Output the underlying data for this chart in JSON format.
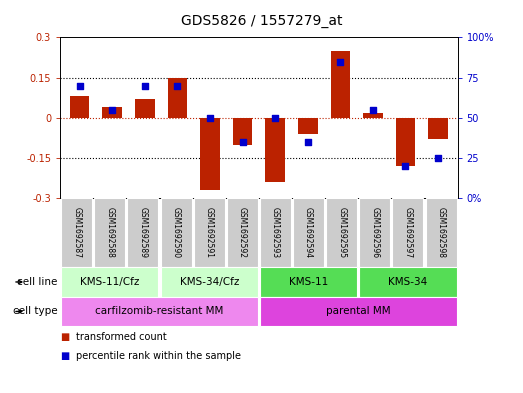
{
  "title": "GDS5826 / 1557279_at",
  "samples": [
    "GSM1692587",
    "GSM1692588",
    "GSM1692589",
    "GSM1692590",
    "GSM1692591",
    "GSM1692592",
    "GSM1692593",
    "GSM1692594",
    "GSM1692595",
    "GSM1692596",
    "GSM1692597",
    "GSM1692598"
  ],
  "transformed_count": [
    0.08,
    0.04,
    0.07,
    0.15,
    -0.27,
    -0.1,
    -0.24,
    -0.06,
    0.25,
    0.02,
    -0.18,
    -0.08
  ],
  "percentile_rank": [
    70,
    55,
    70,
    70,
    50,
    35,
    50,
    35,
    85,
    55,
    20,
    25
  ],
  "bar_color": "#bb2200",
  "dot_color": "#0000cc",
  "ylim": [
    -0.3,
    0.3
  ],
  "y2lim": [
    0,
    100
  ],
  "yticks": [
    -0.3,
    -0.15,
    0.0,
    0.15,
    0.3
  ],
  "y2ticks": [
    0,
    25,
    50,
    75,
    100
  ],
  "ytick_labels": [
    "-0.3",
    "-0.15",
    "0",
    "0.15",
    "0.3"
  ],
  "y2tick_labels": [
    "0%",
    "25",
    "50",
    "75",
    "100%"
  ],
  "hlines_black": [
    -0.15,
    0.15
  ],
  "hline_red": 0.0,
  "cell_line_groups": [
    {
      "label": "KMS-11/Cfz",
      "start": 0,
      "end": 2,
      "color": "#ccffcc"
    },
    {
      "label": "KMS-34/Cfz",
      "start": 3,
      "end": 5,
      "color": "#ccffcc"
    },
    {
      "label": "KMS-11",
      "start": 6,
      "end": 8,
      "color": "#55dd55"
    },
    {
      "label": "KMS-34",
      "start": 9,
      "end": 11,
      "color": "#55dd55"
    }
  ],
  "cell_type_groups": [
    {
      "label": "carfilzomib-resistant MM",
      "start": 0,
      "end": 5,
      "color": "#ee88ee"
    },
    {
      "label": "parental MM",
      "start": 6,
      "end": 11,
      "color": "#dd44dd"
    }
  ],
  "cell_line_row_label": "cell line",
  "cell_type_row_label": "cell type",
  "legend_red": "transformed count",
  "legend_blue": "percentile rank within the sample",
  "background_color": "#ffffff",
  "sample_bg_color": "#cccccc",
  "title_fontsize": 10,
  "tick_fontsize": 7,
  "label_fontsize": 7.5,
  "sample_fontsize": 5.5,
  "group_fontsize": 7.5
}
